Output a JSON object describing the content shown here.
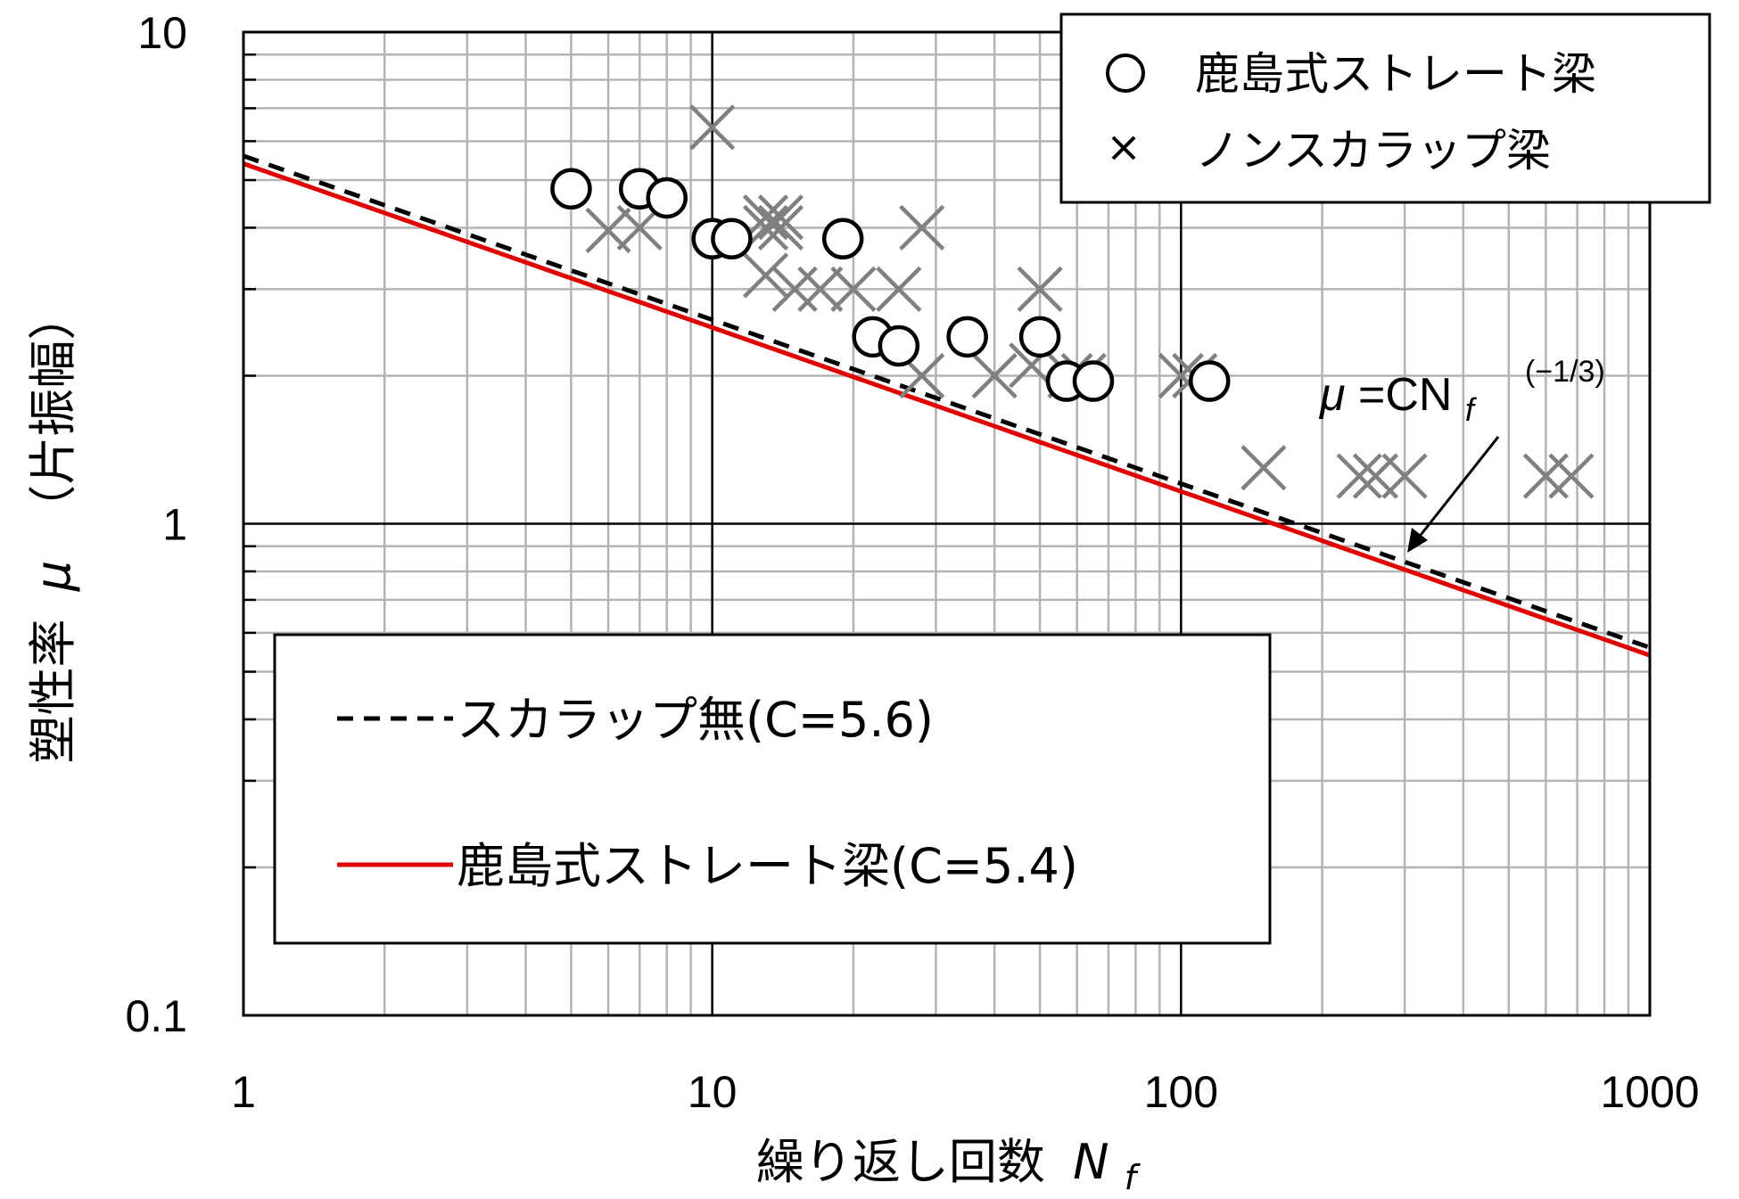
{
  "chart_data": {
    "type": "scatter",
    "x_scale": "log",
    "y_scale": "log",
    "xlim": [
      1,
      1000
    ],
    "ylim": [
      0.1,
      10
    ],
    "xlabel_main": "繰り返し回数",
    "xlabel_symbol": "N",
    "xlabel_sub": "f",
    "ylabel_main": "塑性率",
    "ylabel_symbol": "μ",
    "ylabel_note": "（片振幅）",
    "x_ticks": [
      "1",
      "10",
      "100",
      "1000"
    ],
    "y_ticks": [
      "0.1",
      "1",
      "10"
    ],
    "grid": true,
    "annotation": {
      "mu": "μ",
      "eq": "=CN",
      "sub": "f",
      "sup": "(−1/3)"
    },
    "marker_legend": {
      "placement": "top-right",
      "items": [
        {
          "symbol": "○",
          "label": "鹿島式ストレート梁"
        },
        {
          "symbol": "×",
          "label": "ノンスカラップ梁"
        }
      ]
    },
    "line_legend": {
      "placement": "bottom-left",
      "items": [
        {
          "label": "スカラップ無(C=5.6)",
          "style": "dashed",
          "color": "#000000"
        },
        {
          "label": "鹿島式ストレート梁(C=5.4)",
          "style": "solid",
          "color": "#e00000"
        }
      ]
    },
    "series": [
      {
        "name": "鹿島式ストレート梁",
        "marker": "circle",
        "points": [
          [
            5,
            4.8
          ],
          [
            7,
            4.8
          ],
          [
            8,
            4.6
          ],
          [
            10,
            3.8
          ],
          [
            11,
            3.8
          ],
          [
            19,
            3.8
          ],
          [
            22,
            2.4
          ],
          [
            25,
            2.3
          ],
          [
            35,
            2.4
          ],
          [
            50,
            2.4
          ],
          [
            57,
            1.95
          ],
          [
            65,
            1.95
          ],
          [
            115,
            1.95
          ]
        ]
      },
      {
        "name": "ノンスカラップ梁",
        "marker": "x",
        "points": [
          [
            10,
            6.4
          ],
          [
            6,
            3.95
          ],
          [
            7,
            4.0
          ],
          [
            13,
            4.0
          ],
          [
            14,
            4.0
          ],
          [
            13,
            4.2
          ],
          [
            14,
            4.2
          ],
          [
            28,
            4.0
          ],
          [
            13,
            3.2
          ],
          [
            15,
            3.0
          ],
          [
            17,
            3.0
          ],
          [
            20,
            3.0
          ],
          [
            25,
            3.0
          ],
          [
            50,
            3.0
          ],
          [
            28,
            2.0
          ],
          [
            40,
            2.0
          ],
          [
            48,
            2.1
          ],
          [
            58,
            2.0
          ],
          [
            62,
            2.0
          ],
          [
            100,
            2.0
          ],
          [
            107,
            2.0
          ],
          [
            150,
            1.3
          ],
          [
            240,
            1.25
          ],
          [
            260,
            1.25
          ],
          [
            300,
            1.25
          ],
          [
            600,
            1.25
          ],
          [
            680,
            1.25
          ]
        ]
      },
      {
        "name": "スカラップ無(C=5.6)",
        "type": "line",
        "formula": "C*x^(-1/3)",
        "C": 5.6,
        "style": "dashed",
        "color": "#000000"
      },
      {
        "name": "鹿島式ストレート梁(C=5.4)",
        "type": "line",
        "formula": "C*x^(-1/3)",
        "C": 5.4,
        "style": "solid",
        "color": "#e00000"
      }
    ]
  }
}
